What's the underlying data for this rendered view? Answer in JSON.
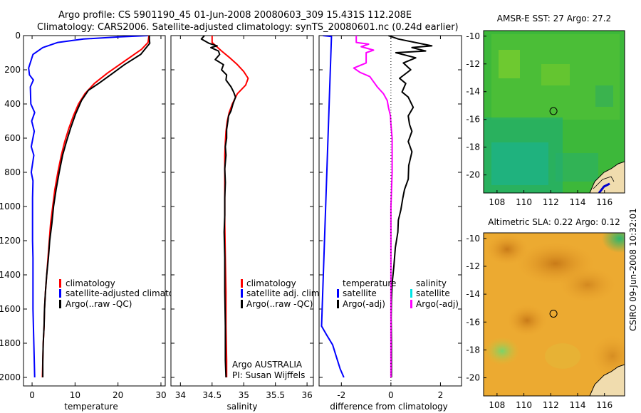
{
  "figure": {
    "title_line1": "Argo profile: CS 5901190_45 01-Jun-2008 20080603_309 15.431S 112.208E",
    "title_line2": "Climatology: CARS2006. Satellite-adjusted climatology: synTS_20080601.nc (0.24d earlier)",
    "side_stamp": "CSIRO 09-Jun-2008 10:32:01",
    "float_info_line1": "Argo AUSTRALIA",
    "float_info_line2": "PI: Susan Wijffels"
  },
  "colors": {
    "climatology": "#ff0000",
    "satellite": "#0000ff",
    "argo": "#000000",
    "satellite_salinity": "#00e5e5",
    "argo_adj_salinity": "#ff00ff"
  },
  "chart_data": [
    {
      "id": "temperature",
      "type": "line",
      "xlabel": "temperature",
      "ylabel": "",
      "xlim": [
        -2,
        31
      ],
      "ylim": [
        2050,
        0
      ],
      "xticks": [
        "0",
        "10",
        "20",
        "30"
      ],
      "yticks": [
        "0",
        "200",
        "400",
        "600",
        "800",
        "1000",
        "1200",
        "1400",
        "1600",
        "1800",
        "2000"
      ],
      "legend": [
        "climatology",
        "satellite-adjusted climatology",
        "Argo(..raw -QC)"
      ],
      "series": [
        {
          "name": "climatology",
          "color": "#ff0000",
          "points": [
            [
              27.2,
              0
            ],
            [
              27.0,
              40
            ],
            [
              25.5,
              80
            ],
            [
              21.5,
              150
            ],
            [
              17.5,
              220
            ],
            [
              14.5,
              280
            ],
            [
              12.3,
              340
            ],
            [
              10.8,
              400
            ],
            [
              9.6,
              470
            ],
            [
              8.6,
              540
            ],
            [
              7.6,
              620
            ],
            [
              6.8,
              700
            ],
            [
              6.0,
              800
            ],
            [
              5.3,
              900
            ],
            [
              4.8,
              1000
            ],
            [
              4.3,
              1100
            ],
            [
              4.0,
              1200
            ],
            [
              3.7,
              1300
            ],
            [
              3.4,
              1400
            ],
            [
              3.1,
              1500
            ],
            [
              2.9,
              1600
            ],
            [
              2.8,
              1700
            ],
            [
              2.6,
              1800
            ],
            [
              2.5,
              1900
            ],
            [
              2.4,
              2000
            ]
          ]
        },
        {
          "name": "satellite-adjusted climatology",
          "color": "#0000ff",
          "points": [
            [
              27.0,
              0
            ],
            [
              20,
              8
            ],
            [
              12,
              20
            ],
            [
              6,
              40
            ],
            [
              2.5,
              70
            ],
            [
              0.2,
              110
            ],
            [
              -0.8,
              190
            ],
            [
              -0.6,
              230
            ],
            [
              0.3,
              260
            ],
            [
              -0.4,
              300
            ],
            [
              -0.3,
              400
            ],
            [
              0.6,
              450
            ],
            [
              -0.1,
              500
            ],
            [
              0.5,
              560
            ],
            [
              -0.2,
              650
            ],
            [
              0.4,
              700
            ],
            [
              -0.2,
              800
            ],
            [
              0.2,
              850
            ],
            [
              0.1,
              950
            ],
            [
              0.1,
              1200
            ],
            [
              0.2,
              1300
            ],
            [
              0.2,
              1600
            ],
            [
              0.4,
              1800
            ],
            [
              0.6,
              2000
            ]
          ]
        },
        {
          "name": "Argo(..raw -QC)",
          "color": "#000000",
          "points": [
            [
              27.3,
              0
            ],
            [
              27.3,
              20
            ],
            [
              27.4,
              45
            ],
            [
              25.3,
              110
            ],
            [
              21.5,
              170
            ],
            [
              18.8,
              220
            ],
            [
              15.5,
              280
            ],
            [
              13.1,
              320
            ],
            [
              11.5,
              380
            ],
            [
              10.1,
              460
            ],
            [
              9.0,
              540
            ],
            [
              8.0,
              620
            ],
            [
              7.1,
              700
            ],
            [
              6.3,
              800
            ],
            [
              5.6,
              900
            ],
            [
              5.0,
              1000
            ],
            [
              4.6,
              1100
            ],
            [
              4.1,
              1200
            ],
            [
              3.8,
              1300
            ],
            [
              3.4,
              1400
            ],
            [
              3.1,
              1500
            ],
            [
              2.9,
              1600
            ],
            [
              2.8,
              1700
            ],
            [
              2.6,
              1800
            ],
            [
              2.5,
              1900
            ],
            [
              2.5,
              2000
            ]
          ]
        }
      ]
    },
    {
      "id": "salinity",
      "type": "line",
      "xlabel": "salinity",
      "ylabel": "",
      "xlim": [
        33.85,
        36.1
      ],
      "ylim": [
        2050,
        0
      ],
      "xticks": [
        "34",
        "34.5",
        "35",
        "35.5",
        "36"
      ],
      "legend": [
        "climatology",
        "satellite adj. clim.",
        "Argo(..raw -QC)"
      ],
      "series": [
        {
          "name": "climatology",
          "color": "#ff0000",
          "points": [
            [
              34.5,
              0
            ],
            [
              34.5,
              40
            ],
            [
              34.65,
              90
            ],
            [
              34.78,
              130
            ],
            [
              34.9,
              170
            ],
            [
              35.0,
              210
            ],
            [
              35.07,
              250
            ],
            [
              35.03,
              290
            ],
            [
              34.9,
              340
            ],
            [
              34.82,
              400
            ],
            [
              34.77,
              450
            ],
            [
              34.74,
              500
            ],
            [
              34.72,
              560
            ],
            [
              34.71,
              620
            ],
            [
              34.7,
              700
            ],
            [
              34.7,
              800
            ],
            [
              34.7,
              900
            ],
            [
              34.7,
              1000
            ],
            [
              34.7,
              1100
            ],
            [
              34.71,
              1300
            ],
            [
              34.72,
              1500
            ],
            [
              34.72,
              1700
            ],
            [
              34.73,
              1900
            ],
            [
              34.73,
              2000
            ]
          ]
        },
        {
          "name": "Argo(..raw -QC)",
          "color": "#000000",
          "points": [
            [
              34.38,
              0
            ],
            [
              34.33,
              20
            ],
            [
              34.45,
              45
            ],
            [
              34.58,
              60
            ],
            [
              34.48,
              70
            ],
            [
              34.6,
              90
            ],
            [
              34.62,
              110
            ],
            [
              34.55,
              140
            ],
            [
              34.68,
              170
            ],
            [
              34.65,
              200
            ],
            [
              34.73,
              230
            ],
            [
              34.72,
              260
            ],
            [
              34.8,
              300
            ],
            [
              34.84,
              330
            ],
            [
              34.87,
              360
            ],
            [
              34.83,
              400
            ],
            [
              34.8,
              440
            ],
            [
              34.76,
              470
            ],
            [
              34.75,
              500
            ],
            [
              34.73,
              550
            ],
            [
              34.73,
              600
            ],
            [
              34.71,
              650
            ],
            [
              34.72,
              700
            ],
            [
              34.7,
              780
            ],
            [
              34.71,
              860
            ],
            [
              34.7,
              950
            ],
            [
              34.7,
              1050
            ],
            [
              34.69,
              1150
            ],
            [
              34.7,
              1300
            ],
            [
              34.7,
              1500
            ],
            [
              34.71,
              1700
            ],
            [
              34.71,
              1900
            ],
            [
              34.72,
              2000
            ]
          ]
        }
      ]
    },
    {
      "id": "difference",
      "type": "line",
      "xlabel": "difference from climatology",
      "ylabel": "",
      "xlim": [
        -2.9,
        2.85
      ],
      "ylim": [
        2050,
        0
      ],
      "xticks": [
        "-2",
        "0",
        "2"
      ],
      "legend_headers": [
        "temperature",
        "salinity"
      ],
      "legend": [
        "satellite",
        "Argo(-adj)",
        "satellite",
        "Argo(-adj)"
      ],
      "series": [
        {
          "name": "temperature satellite",
          "color": "#0000ff",
          "points": [
            [
              -2.75,
              0
            ],
            [
              -2.4,
              5
            ],
            [
              -2.8,
              1700
            ],
            [
              -2.6,
              1750
            ],
            [
              -2.35,
              1810
            ],
            [
              -2.2,
              1880
            ],
            [
              -2.05,
              1950
            ],
            [
              -1.9,
              2000
            ]
          ]
        },
        {
          "name": "temperature Argo(-adj)",
          "color": "#000000",
          "points": [
            [
              -0.1,
              0
            ],
            [
              0.3,
              20
            ],
            [
              1.65,
              60
            ],
            [
              0.85,
              70
            ],
            [
              1.4,
              90
            ],
            [
              0.2,
              100
            ],
            [
              1.0,
              130
            ],
            [
              0.5,
              160
            ],
            [
              0.8,
              200
            ],
            [
              0.35,
              250
            ],
            [
              0.6,
              280
            ],
            [
              0.45,
              330
            ],
            [
              0.7,
              360
            ],
            [
              0.9,
              420
            ],
            [
              0.7,
              470
            ],
            [
              0.75,
              520
            ],
            [
              0.85,
              560
            ],
            [
              0.7,
              620
            ],
            [
              0.85,
              680
            ],
            [
              0.72,
              760
            ],
            [
              0.7,
              840
            ],
            [
              0.55,
              900
            ],
            [
              0.48,
              950
            ],
            [
              0.4,
              1020
            ],
            [
              0.3,
              1080
            ],
            [
              0.28,
              1150
            ],
            [
              0.18,
              1240
            ],
            [
              0.12,
              1350
            ],
            [
              0.05,
              1450
            ],
            [
              0.02,
              1550
            ],
            [
              0.01,
              1650
            ],
            [
              0.02,
              1800
            ],
            [
              0.02,
              2000
            ]
          ]
        },
        {
          "name": "salinity Argo(-adj)",
          "color": "#ff00ff",
          "points": [
            [
              -1.4,
              0
            ],
            [
              -1.4,
              10
            ],
            [
              -1.4,
              40
            ],
            [
              -0.9,
              50
            ],
            [
              -1.2,
              65
            ],
            [
              -0.7,
              85
            ],
            [
              -1.0,
              100
            ],
            [
              -1.0,
              160
            ],
            [
              -1.5,
              190
            ],
            [
              -1.25,
              215
            ],
            [
              -0.85,
              240
            ],
            [
              -0.7,
              270
            ],
            [
              -0.55,
              300
            ],
            [
              -0.3,
              340
            ],
            [
              -0.15,
              380
            ],
            [
              -0.1,
              420
            ],
            [
              -0.02,
              470
            ],
            [
              0.0,
              520
            ],
            [
              0.05,
              600
            ],
            [
              0.05,
              800
            ],
            [
              0.0,
              1000
            ],
            [
              0.0,
              1200
            ],
            [
              0.0,
              1400
            ],
            [
              0.0,
              1600
            ],
            [
              0.0,
              1800
            ],
            [
              0.0,
              2000
            ]
          ]
        }
      ]
    },
    {
      "id": "sst-map",
      "type": "heatmap",
      "title": "AMSR-E SST: 27 Argo: 27.2",
      "xlim": [
        107,
        117.5
      ],
      "ylim": [
        -21.3,
        -9.6
      ],
      "xticks": [
        "108",
        "110",
        "112",
        "114",
        "116"
      ],
      "yticks": [
        "-10",
        "-12",
        "-14",
        "-16",
        "-18",
        "-20"
      ],
      "marker": [
        112.2,
        -15.4
      ]
    },
    {
      "id": "sla-map",
      "type": "heatmap",
      "title": "Altimetric SLA: 0.22 Argo: 0.12",
      "xlim": [
        107,
        117.5
      ],
      "ylim": [
        -21.3,
        -9.6
      ],
      "xticks": [
        "108",
        "110",
        "112",
        "114",
        "116"
      ],
      "yticks": [
        "-10",
        "-12",
        "-14",
        "-16",
        "-18",
        "-20"
      ],
      "marker": [
        112.2,
        -15.4
      ]
    }
  ]
}
